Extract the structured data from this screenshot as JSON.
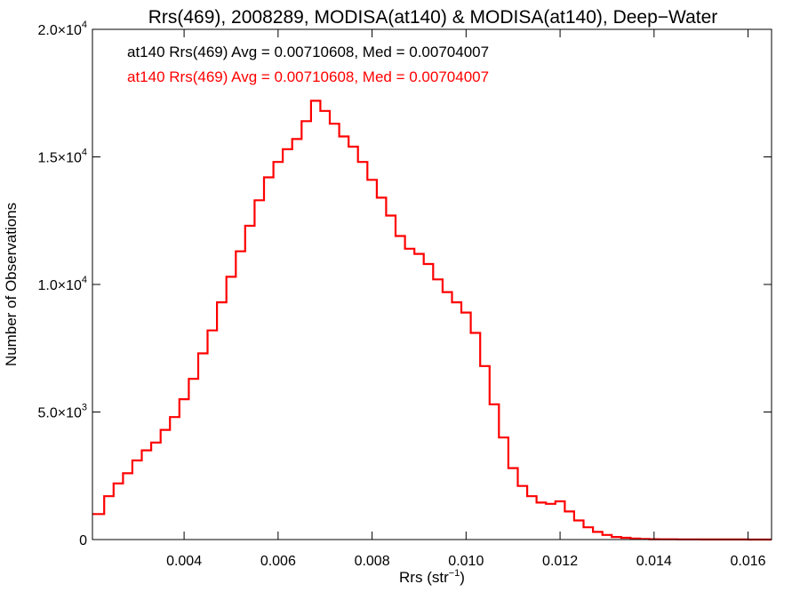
{
  "chart_data": {
    "type": "line",
    "title": "Rrs(469), 2008289, MODISA(at140) & MODISA(at140), Deep−Water",
    "xlabel": "Rrs (str",
    "xlabel_exponent": "−1",
    "xlabel_suffix": ")",
    "ylabel": "Number of Observations",
    "xlim": [
      0.00205,
      0.0165
    ],
    "ylim": [
      0,
      20000
    ],
    "x_ticks": [
      {
        "value": 0.004,
        "label": "0.004"
      },
      {
        "value": 0.006,
        "label": "0.006"
      },
      {
        "value": 0.008,
        "label": "0.008"
      },
      {
        "value": 0.01,
        "label": "0.010"
      },
      {
        "value": 0.012,
        "label": "0.012"
      },
      {
        "value": 0.014,
        "label": "0.014"
      },
      {
        "value": 0.016,
        "label": "0.016"
      }
    ],
    "y_ticks": [
      {
        "value": 0,
        "mantissa": "0",
        "exponent": ""
      },
      {
        "value": 5000,
        "mantissa": "5.0×10",
        "exponent": "3"
      },
      {
        "value": 10000,
        "mantissa": "1.0×10",
        "exponent": "4"
      },
      {
        "value": 15000,
        "mantissa": "1.5×10",
        "exponent": "4"
      },
      {
        "value": 20000,
        "mantissa": "2.0×10",
        "exponent": "4"
      }
    ],
    "grid": false,
    "legend_position": "top-left",
    "legend": [
      {
        "text": "at140 Rrs(469) Avg = 0.00710608, Med = 0.00704007",
        "color": "#000000"
      },
      {
        "text": "at140 Rrs(469) Avg = 0.00710608, Med = 0.00704007",
        "color": "#ff0000"
      }
    ],
    "series": [
      {
        "color": "#ff0000",
        "style": "histogram-step",
        "x": [
          0.00205,
          0.0023,
          0.0025,
          0.0027,
          0.0029,
          0.0031,
          0.0033,
          0.0035,
          0.0037,
          0.0039,
          0.0041,
          0.0043,
          0.0045,
          0.0047,
          0.0049,
          0.0051,
          0.0053,
          0.0055,
          0.0057,
          0.0059,
          0.0061,
          0.0063,
          0.0065,
          0.0067,
          0.0069,
          0.0071,
          0.0073,
          0.0075,
          0.0077,
          0.0079,
          0.0081,
          0.0083,
          0.0085,
          0.0087,
          0.0089,
          0.0091,
          0.0093,
          0.0095,
          0.0097,
          0.0099,
          0.0101,
          0.0103,
          0.0105,
          0.0107,
          0.0109,
          0.0111,
          0.0113,
          0.0115,
          0.0117,
          0.0119,
          0.0121,
          0.0123,
          0.0125,
          0.0127,
          0.0129,
          0.0131,
          0.0133,
          0.0135,
          0.0137,
          0.0139,
          0.0141,
          0.0145,
          0.015,
          0.0155,
          0.016,
          0.0165
        ],
        "values": [
          1000,
          1700,
          2200,
          2600,
          3100,
          3500,
          3800,
          4300,
          4800,
          5500,
          6300,
          7300,
          8200,
          9300,
          10300,
          11300,
          12300,
          13300,
          14200,
          14800,
          15300,
          15700,
          16400,
          17200,
          16800,
          16300,
          15800,
          15400,
          14800,
          14100,
          13400,
          12700,
          11900,
          11400,
          11200,
          10800,
          10200,
          9700,
          9300,
          8900,
          8100,
          6800,
          5300,
          4000,
          2800,
          2100,
          1700,
          1450,
          1400,
          1500,
          1100,
          750,
          480,
          300,
          180,
          100,
          70,
          40,
          25,
          15,
          10,
          6,
          4,
          2,
          1,
          1
        ]
      }
    ]
  }
}
